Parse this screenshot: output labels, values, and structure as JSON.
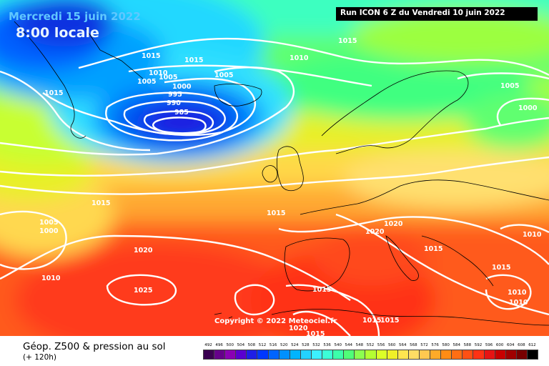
{
  "header": {
    "date": "Mercredi 15 juin 2022",
    "time": "8:00 locale",
    "run": "Run ICON 6 Z du Vendredi 10 juin 2022"
  },
  "copyright": "Copyright © 2022 Meteociel.fr",
  "footer": {
    "title": "Géop. Z500 & pression au sol",
    "lead_time": "(+ 120h)"
  },
  "isobar_labels": [
    "1015",
    "1010",
    "1015",
    "1015",
    "1005",
    "1005",
    "1000",
    "995",
    "990",
    "985",
    "1005",
    "1015",
    "1010",
    "1005",
    "1000",
    "1015",
    "1015",
    "1005",
    "1000",
    "1020",
    "1020",
    "1020",
    "1010",
    "1025",
    "1015",
    "1015",
    "1010",
    "1015",
    "1010",
    "1010",
    "1015",
    "1020",
    "1015",
    "1015"
  ],
  "legend": {
    "values": [
      "492",
      "496",
      "500",
      "504",
      "508",
      "512",
      "516",
      "520",
      "524",
      "528",
      "532",
      "536",
      "540",
      "544",
      "548",
      "552",
      "556",
      "560",
      "564",
      "568",
      "572",
      "576",
      "580",
      "584",
      "588",
      "592",
      "596",
      "600",
      "604",
      "608",
      "612"
    ],
    "colors": [
      "#3a0050",
      "#66008a",
      "#8a00b4",
      "#5a00d0",
      "#1e1ee6",
      "#0037ff",
      "#0064ff",
      "#0090ff",
      "#00b4ff",
      "#23d2ff",
      "#3cf0ff",
      "#3cffd7",
      "#3cffaa",
      "#50ff78",
      "#8cff50",
      "#b4ff32",
      "#dcff28",
      "#f0f028",
      "#ffe650",
      "#ffdc64",
      "#ffc850",
      "#ffaa28",
      "#ff8c14",
      "#ff6e14",
      "#ff5014",
      "#ff3214",
      "#e61414",
      "#c80000",
      "#a00000",
      "#780000",
      "#000000"
    ]
  }
}
